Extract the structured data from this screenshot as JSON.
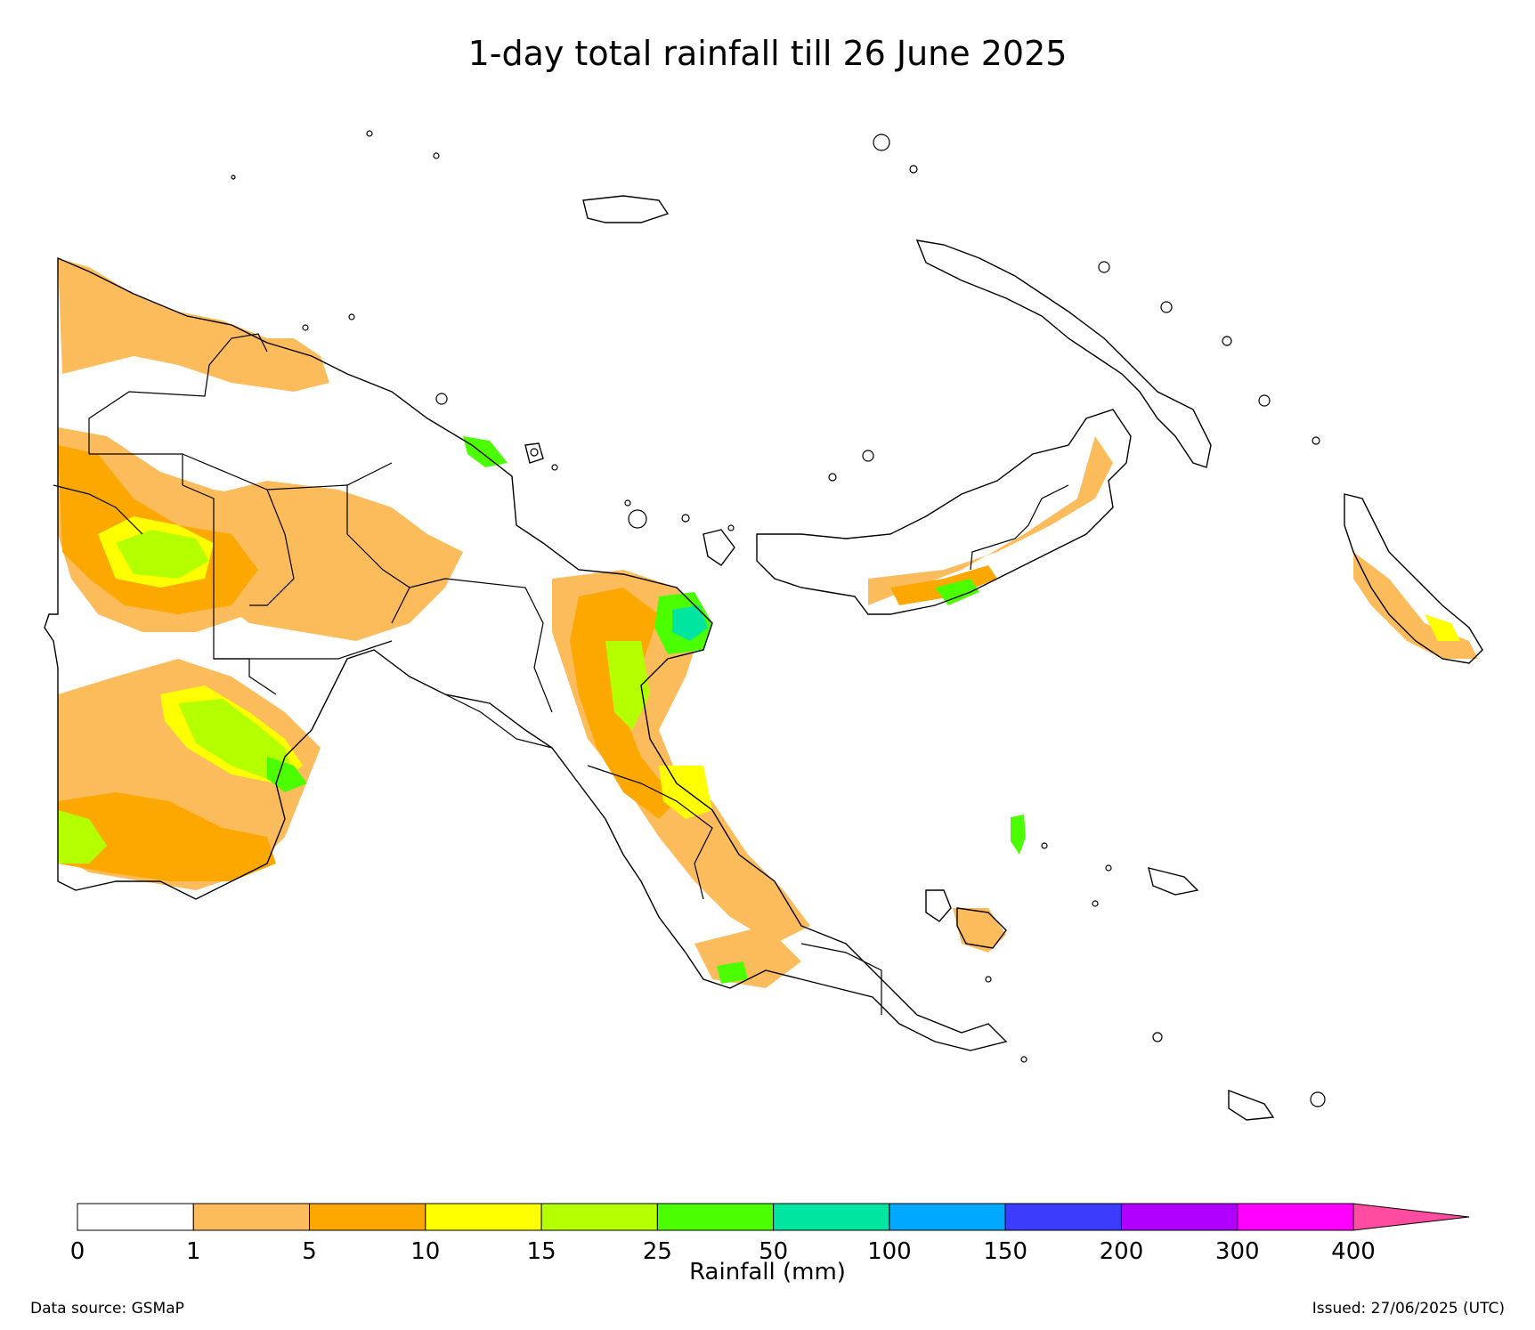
{
  "title": "1-day total rainfall till 26 June 2025",
  "colorbar": {
    "label": "Rainfall (mm)",
    "ticks": [
      "0",
      "1",
      "5",
      "10",
      "15",
      "25",
      "50",
      "100",
      "150",
      "200",
      "300",
      "400"
    ],
    "colors": [
      "#ffffff",
      "#fdbc5c",
      "#fca800",
      "#ffff00",
      "#b4ff00",
      "#4cff00",
      "#00e6a0",
      "#00a8ff",
      "#3c3cff",
      "#b000ff",
      "#ff00ff",
      "#ff4ca0"
    ],
    "extend": "max"
  },
  "footer": {
    "source": "Data source: GSMaP",
    "issued": "Issued: 27/06/2025 (UTC)"
  }
}
